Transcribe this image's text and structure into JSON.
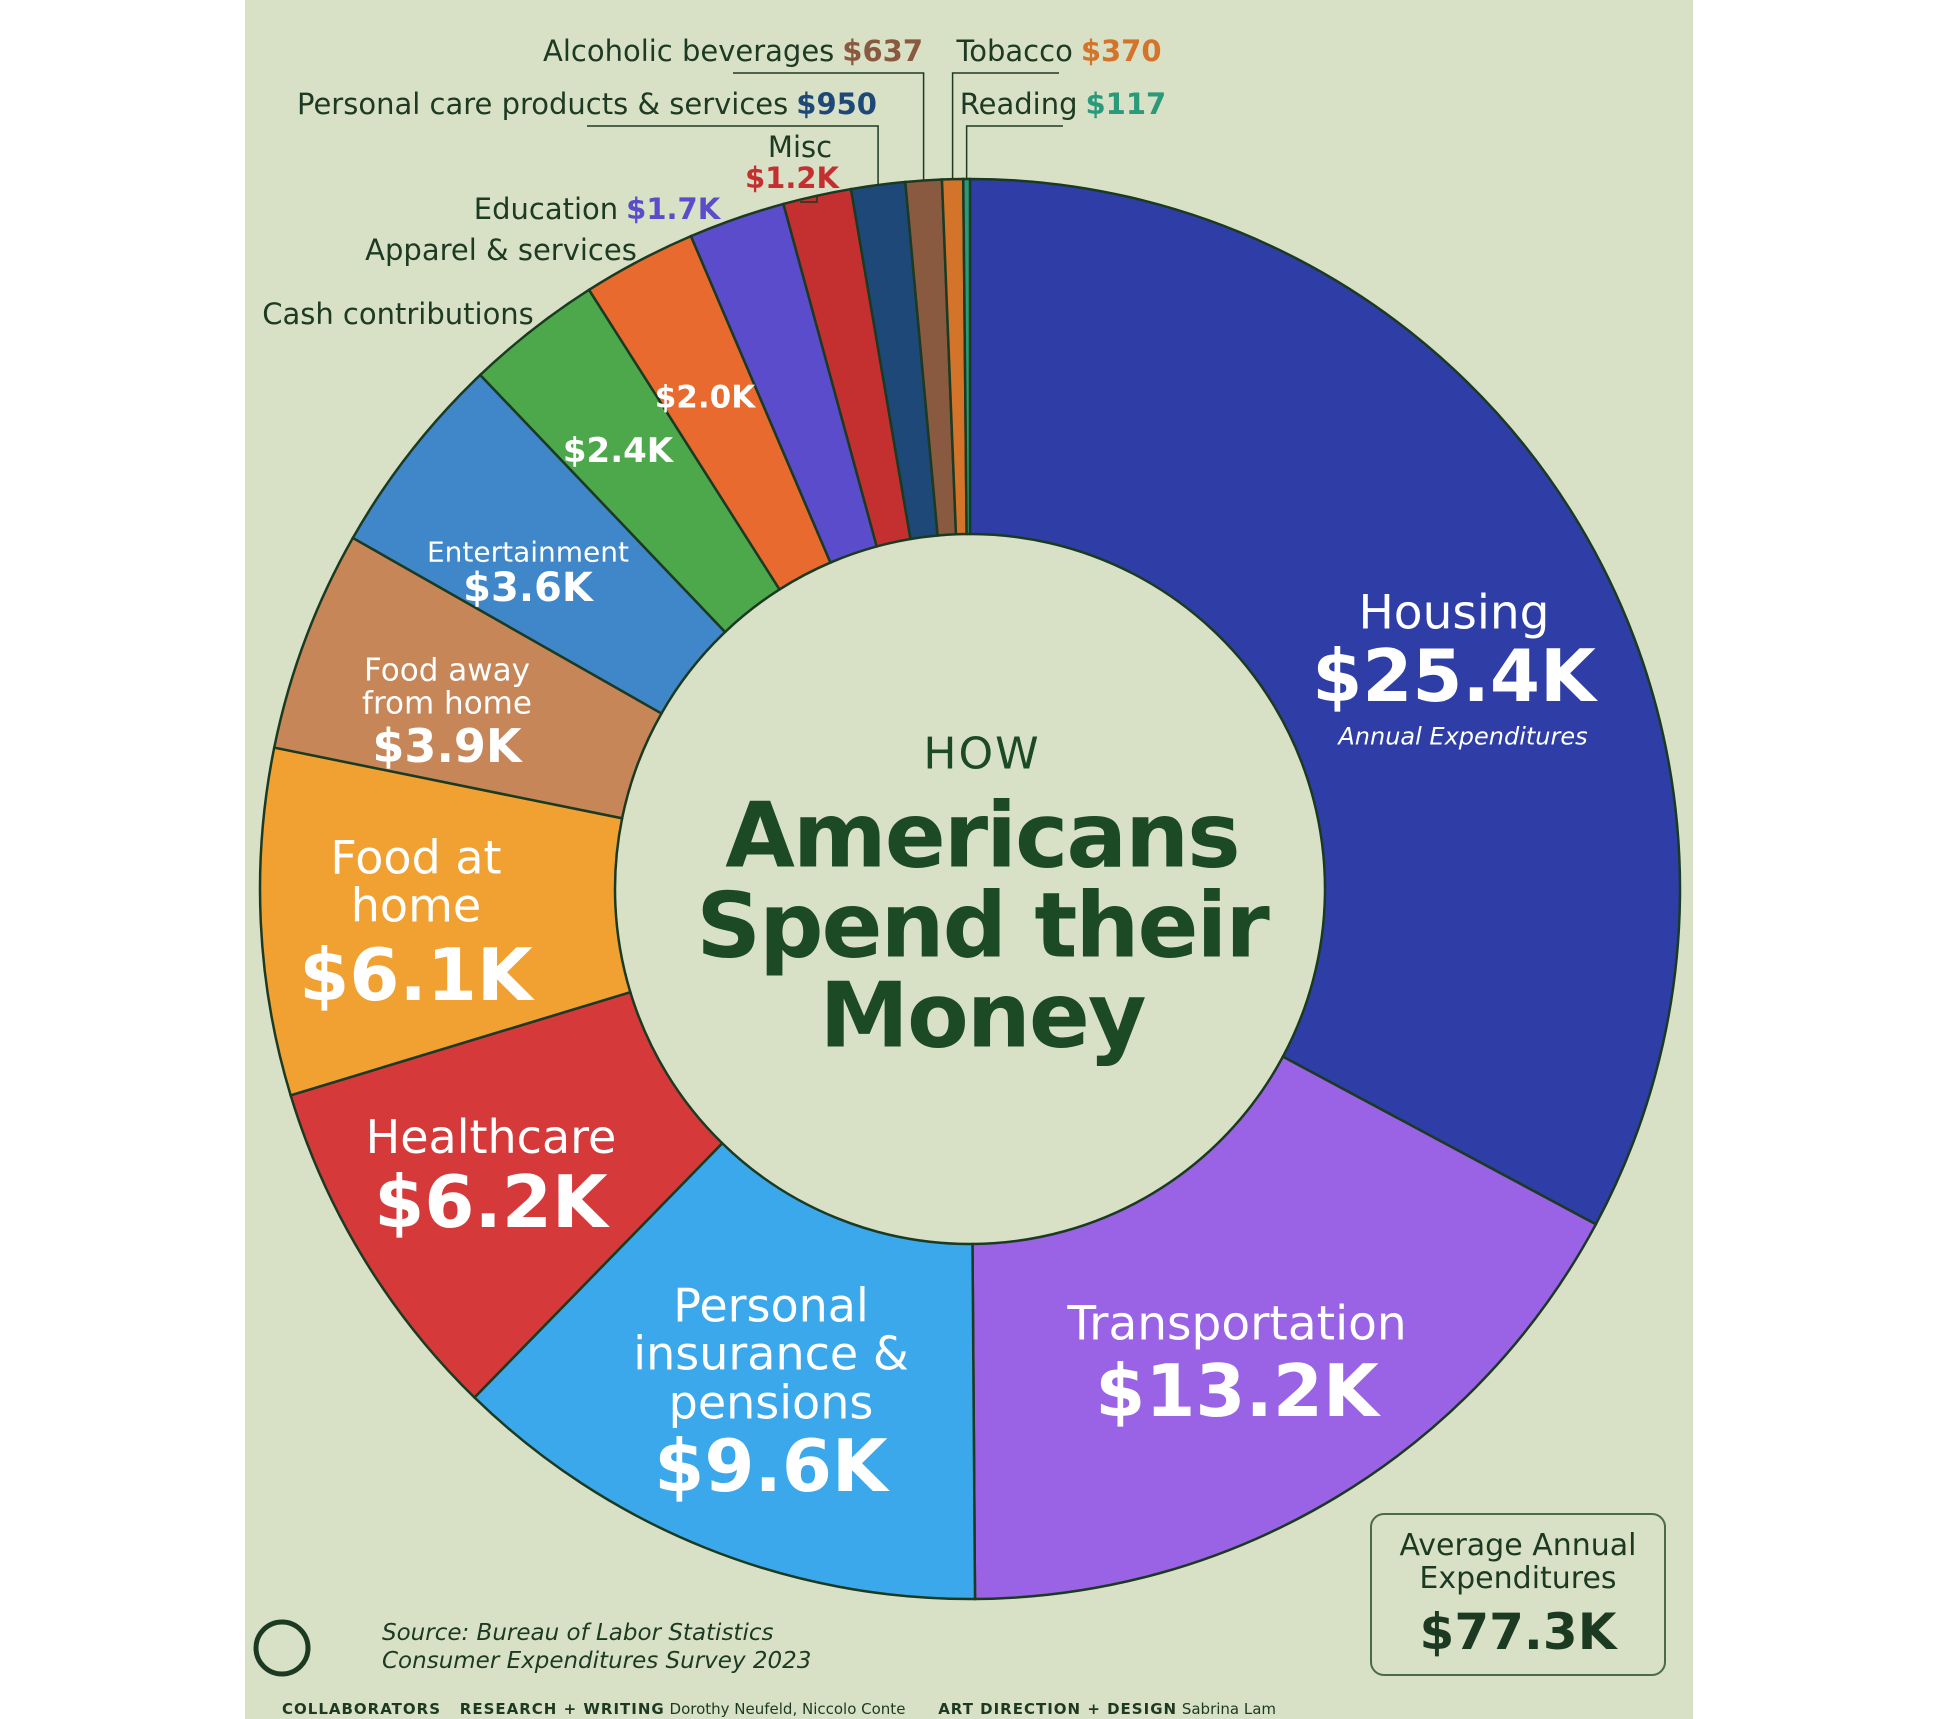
{
  "chart_data": {
    "type": "pie",
    "title_top": "HOW",
    "title": "Americans Spend their Money",
    "annotation": "Annual Expenditures",
    "categories": [
      "Housing",
      "Transportation",
      "Personal insurance & pensions",
      "Healthcare",
      "Food at home",
      "Food away from home",
      "Entertainment",
      "Cash contributions",
      "Apparel & services",
      "Education",
      "Misc",
      "Personal care products & services",
      "Alcoholic beverages",
      "Tobacco",
      "Reading"
    ],
    "values": [
      25400,
      13200,
      9600,
      6200,
      6100,
      3900,
      3600,
      2400,
      2000,
      1700,
      1200,
      950,
      637,
      370,
      117
    ],
    "value_labels": [
      "$25.4K",
      "$13.2K",
      "$9.6K",
      "$6.2K",
      "$6.1K",
      "$3.9K",
      "$3.6K",
      "$2.4K",
      "$2.0K",
      "$1.7K",
      "$1.2K",
      "$950",
      "$637",
      "$370",
      "$117"
    ],
    "colors": [
      "#2e3ea6",
      "#9a62e4",
      "#3aa8ea",
      "#d6393a",
      "#f0a132",
      "#c68658",
      "#3f87c9",
      "#4da84c",
      "#e86a2f",
      "#5a4ccb",
      "#c42f2f",
      "#1e4877",
      "#8a5a40",
      "#d4742a",
      "#2a9a7a"
    ],
    "total": {
      "label": "Average Annual Expenditures",
      "value": 77300,
      "value_label": "$77.3K"
    }
  },
  "source": [
    "Source: Bureau of Labor Statistics",
    "Consumer Expenditures Survey 2023"
  ],
  "credits": {
    "brand": "COLLABORATORS",
    "research_heading": "RESEARCH + WRITING",
    "research_names": "Dorothy Neufeld, Niccolo Conte",
    "design_heading": "ART DIRECTION + DESIGN",
    "design_names": "Sabrina Lam"
  }
}
